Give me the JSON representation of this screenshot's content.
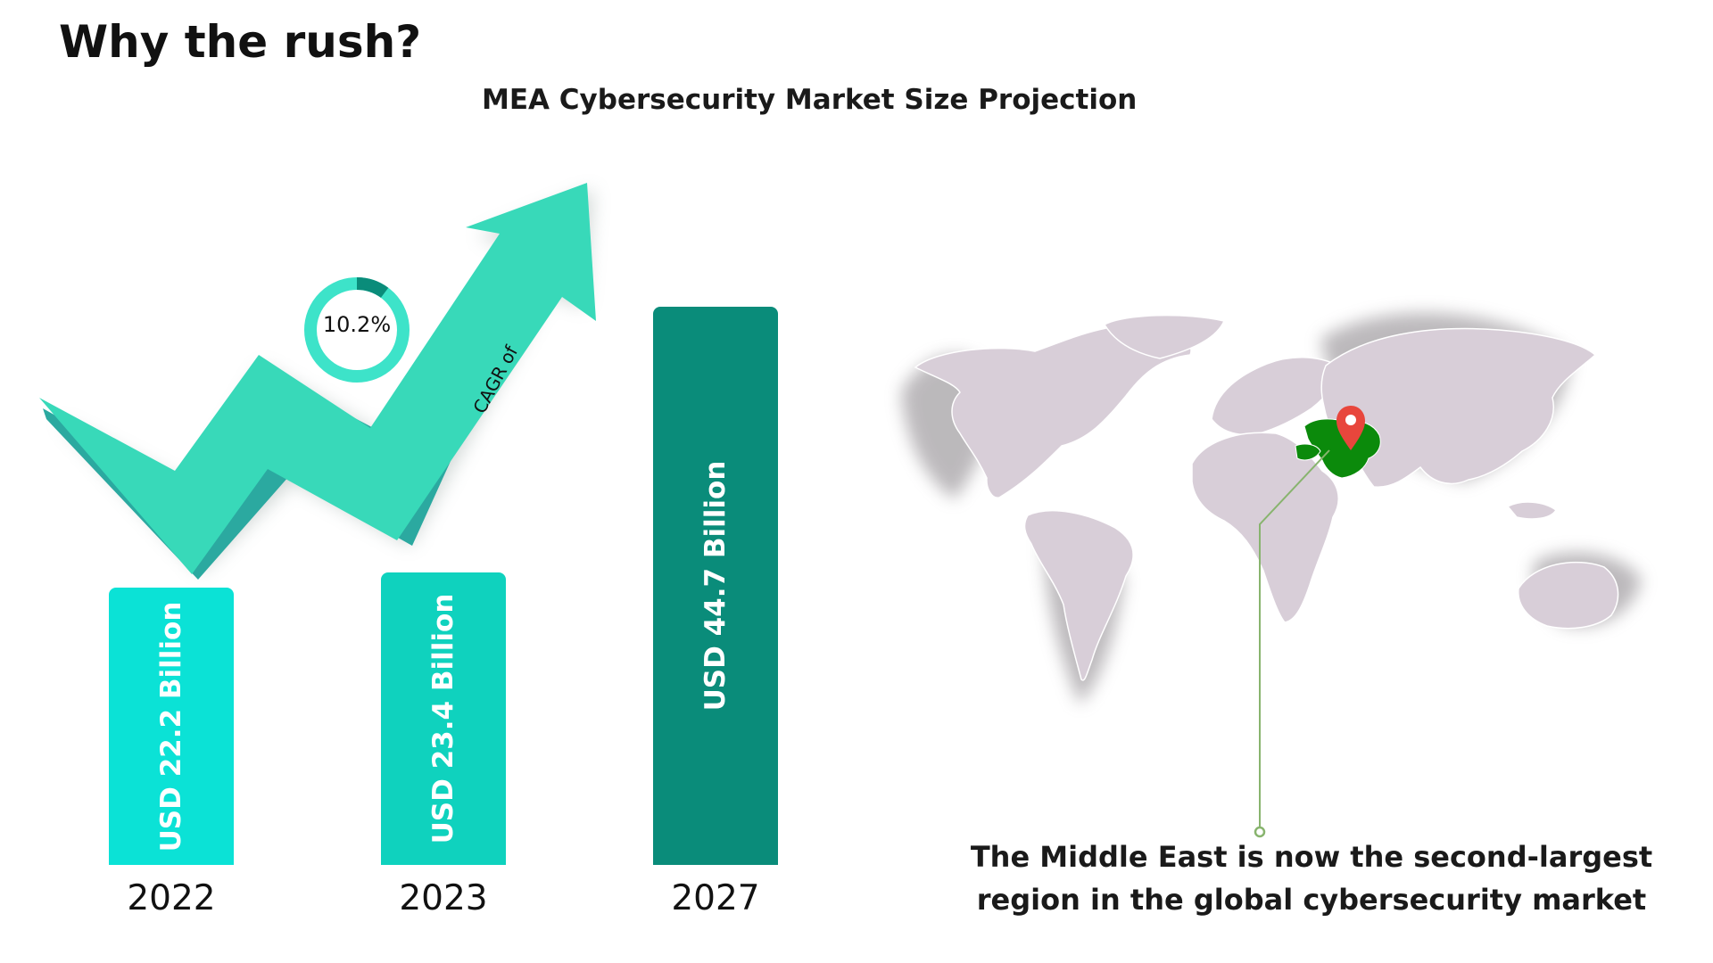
{
  "page": {
    "title": "Why the rush?"
  },
  "chart_data": {
    "type": "bar",
    "title": "MEA Cybersecurity Market Size Projection",
    "categories": [
      "2022",
      "2023",
      "2027"
    ],
    "values": [
      22.2,
      23.4,
      44.7
    ],
    "value_labels": [
      "USD 22.2 Billion",
      "USD 23.4 Billion",
      "USD 44.7 Billion"
    ],
    "ylim": [
      0,
      45
    ],
    "bar_colors": [
      "#0BE2D6",
      "#0FD2BE",
      "#0A8C7A"
    ],
    "cagr": {
      "value": "10.2%",
      "fraction": 0.102,
      "label": "CAGR of"
    },
    "arrow_color": "#38D9B9"
  },
  "map": {
    "caption_lines": [
      "The Middle East is now the second-largest",
      "region in the global cybersecurity market"
    ],
    "land_color": "#D8CED8",
    "highlight_color": "#0B8A0B",
    "pin_color": "#E8463C",
    "leader_color": "#88B46E"
  }
}
